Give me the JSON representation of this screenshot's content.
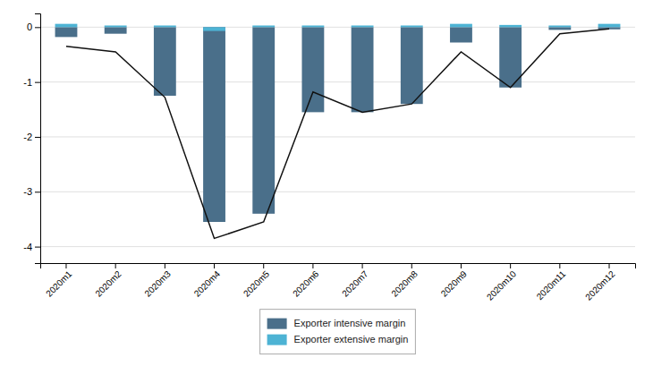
{
  "chart_data": {
    "type": "bar",
    "categories": [
      "2020m1",
      "2020m2",
      "2020m3",
      "2020m4",
      "2020m5",
      "2020m6",
      "2020m7",
      "2020m8",
      "2020m9",
      "2020m10",
      "2020m11",
      "2020m12"
    ],
    "series": [
      {
        "name": "Exporter intensive margin",
        "type": "bar",
        "color": "#4a6f8a",
        "values": [
          -0.18,
          -0.12,
          -1.25,
          -3.55,
          -3.4,
          -1.55,
          -1.55,
          -1.4,
          -0.28,
          -1.1,
          -0.05,
          -0.04
        ]
      },
      {
        "name": "Exporter extensive margin",
        "type": "bar",
        "color": "#4db3d4",
        "values": [
          0.06,
          0.03,
          0.03,
          -0.07,
          0.03,
          0.03,
          0.03,
          0.03,
          0.06,
          0.04,
          0.03,
          0.06
        ]
      },
      {
        "type": "line",
        "color": "#111111",
        "values": [
          -0.35,
          -0.45,
          -1.28,
          -3.85,
          -3.55,
          -1.18,
          -1.55,
          -1.4,
          -0.45,
          -1.1,
          -0.12,
          -0.03
        ]
      }
    ],
    "ylim": [
      -4.3,
      0.25
    ],
    "yticks": [
      0,
      -1,
      -2,
      -3,
      -4
    ],
    "grid": true,
    "legend": "bottom"
  }
}
